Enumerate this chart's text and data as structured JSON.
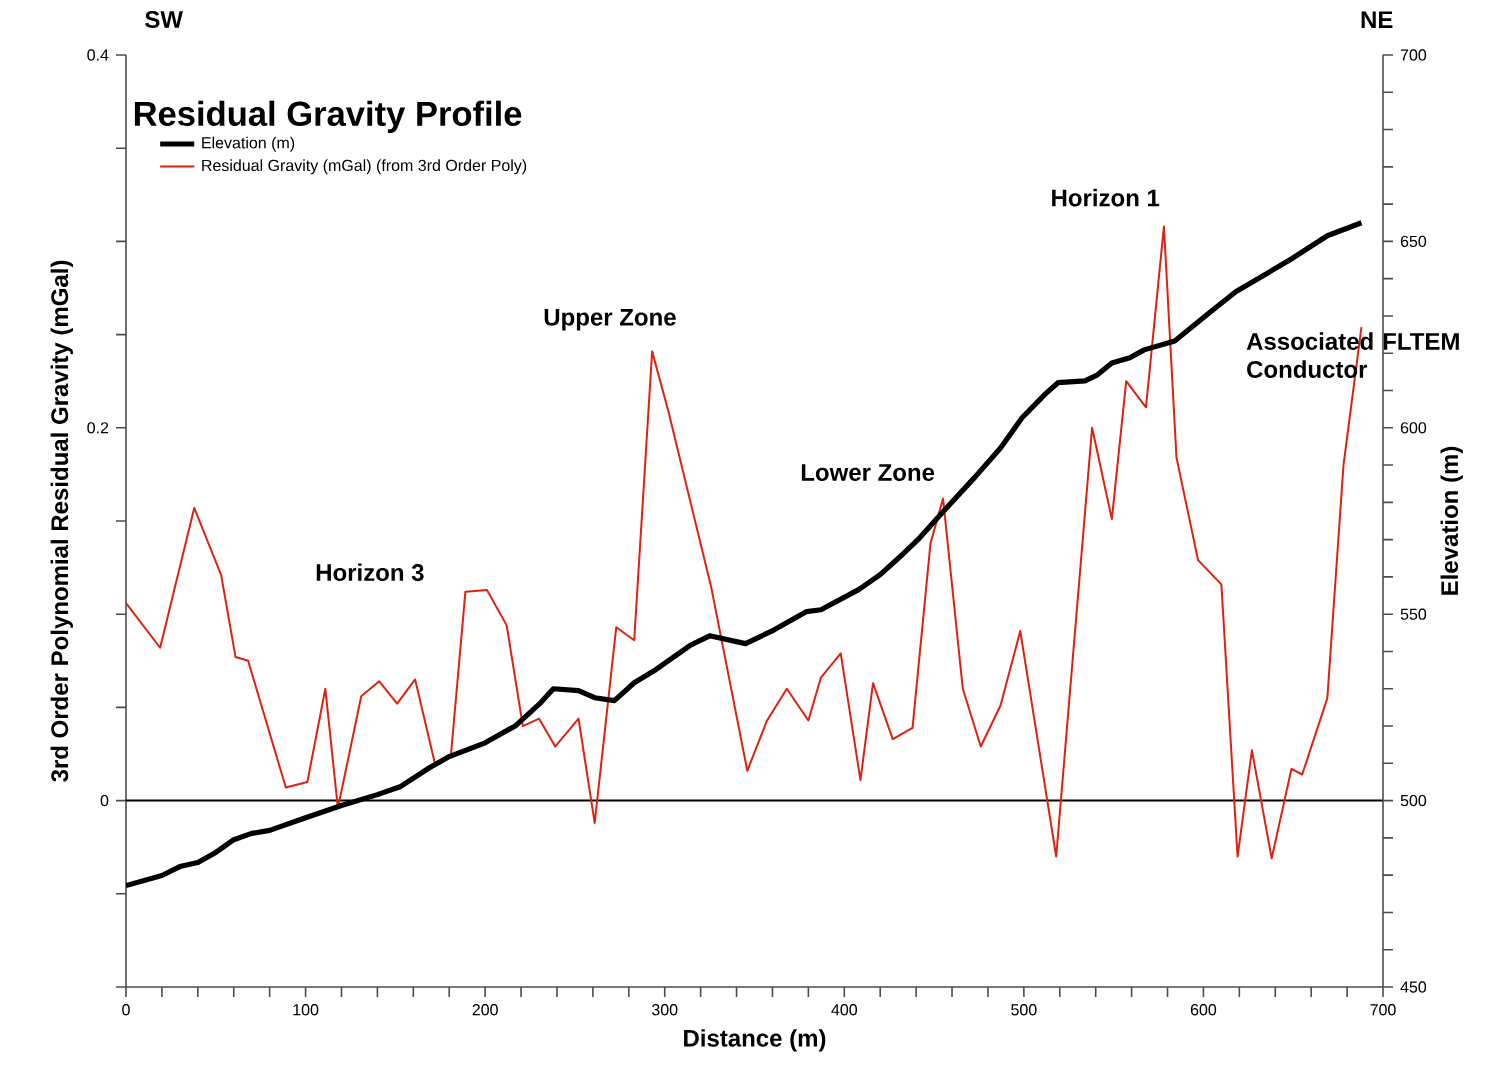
{
  "chart_data": {
    "type": "line",
    "legend_title": "Residual Gravity Profile",
    "xlabel": "Distance (m)",
    "ylabel": "3rd Order Polynomial Residual Gravity (mGal)",
    "y2label": "Elevation (m)",
    "xlim": [
      0,
      700
    ],
    "xticks": [
      0,
      {
        "value": 20,
        "label": null
      },
      {
        "value": 40,
        "label": null
      },
      {
        "value": 60,
        "label": null
      },
      {
        "value": 80,
        "label": null
      },
      100,
      {
        "value": 120,
        "label": null
      },
      {
        "value": 140,
        "label": null
      },
      {
        "value": 160,
        "label": null
      },
      {
        "value": 180,
        "label": null
      },
      200,
      {
        "value": 220,
        "label": null
      },
      {
        "value": 240,
        "label": null
      },
      {
        "value": 260,
        "label": null
      },
      {
        "value": 280,
        "label": null
      },
      300,
      {
        "value": 320,
        "label": null
      },
      {
        "value": 340,
        "label": null
      },
      {
        "value": 360,
        "label": null
      },
      {
        "value": 380,
        "label": null
      },
      400,
      {
        "value": 420,
        "label": null
      },
      {
        "value": 440,
        "label": null
      },
      {
        "value": 460,
        "label": null
      },
      {
        "value": 480,
        "label": null
      },
      500,
      {
        "value": 520,
        "label": null
      },
      {
        "value": 540,
        "label": null
      },
      {
        "value": 560,
        "label": null
      },
      {
        "value": 580,
        "label": null
      },
      600,
      {
        "value": 620,
        "label": null
      },
      {
        "value": 640,
        "label": null
      },
      {
        "value": 660,
        "label": null
      },
      {
        "value": 680,
        "label": null
      },
      700
    ],
    "ylim": [
      -0.1,
      0.4
    ],
    "yticks": [
      {
        "value": -0.1,
        "label": null
      },
      {
        "value": -0.05,
        "label": null
      },
      0,
      {
        "value": 0.05,
        "label": null
      },
      {
        "value": 0.1,
        "label": null
      },
      {
        "value": 0.15,
        "label": null
      },
      0.2,
      {
        "value": 0.25,
        "label": null
      },
      {
        "value": 0.3,
        "label": null
      },
      {
        "value": 0.35,
        "label": null
      },
      0.4
    ],
    "y2lim": [
      450,
      700
    ],
    "y2ticks": [
      450,
      {
        "value": 460,
        "label": null
      },
      {
        "value": 470,
        "label": null
      },
      {
        "value": 480,
        "label": null
      },
      {
        "value": 490,
        "label": null
      },
      500,
      {
        "value": 510,
        "label": null
      },
      {
        "value": 520,
        "label": null
      },
      {
        "value": 530,
        "label": null
      },
      {
        "value": 540,
        "label": null
      },
      550,
      {
        "value": 560,
        "label": null
      },
      {
        "value": 570,
        "label": null
      },
      {
        "value": 580,
        "label": null
      },
      {
        "value": 590,
        "label": null
      },
      600,
      {
        "value": 610,
        "label": null
      },
      {
        "value": 620,
        "label": null
      },
      {
        "value": 630,
        "label": null
      },
      {
        "value": 640,
        "label": null
      },
      650,
      {
        "value": 660,
        "label": null
      },
      {
        "value": 670,
        "label": null
      },
      {
        "value": 680,
        "label": null
      },
      {
        "value": 690,
        "label": null
      },
      700
    ],
    "legend": "top left",
    "ref_lines": [
      {
        "axis": "y",
        "value": 0,
        "color": "#000000"
      }
    ],
    "series": [
      {
        "name": "Elevation (m)",
        "color": "#000000",
        "axis": "y2",
        "x": [
          0,
          20,
          30,
          40,
          50,
          60,
          70,
          80,
          100,
          120,
          140,
          153,
          169,
          180,
          200,
          217,
          231,
          238,
          252,
          261,
          272,
          283,
          295,
          314,
          325,
          345,
          361,
          379,
          387,
          408,
          420,
          431,
          441,
          456,
          473,
          487,
          499,
          512,
          519,
          534,
          541,
          549,
          559,
          567,
          584,
          604,
          618,
          648,
          669,
          688
        ],
        "values": [
          477.2,
          479.9,
          482.3,
          483.4,
          486.1,
          489.5,
          491.2,
          492.0,
          495.4,
          498.7,
          501.6,
          503.8,
          508.8,
          511.8,
          515.5,
          520.1,
          526.3,
          530.0,
          529.5,
          527.6,
          526.8,
          531.6,
          535.1,
          541.6,
          544.2,
          542.1,
          545.8,
          550.7,
          551.2,
          556.6,
          560.6,
          565.4,
          570.0,
          578.0,
          586.9,
          594.6,
          602.7,
          609.1,
          612.1,
          612.6,
          614.2,
          617.4,
          618.8,
          620.9,
          623.3,
          631.1,
          636.5,
          645.0,
          651.5,
          655.0
        ]
      },
      {
        "name": "Residual Gravity (mGal) (from 3rd Order Poly)",
        "color": "#dd2211",
        "x": [
          0,
          19,
          38,
          53,
          61,
          68,
          89,
          101,
          111,
          118,
          131,
          141,
          151,
          161,
          172,
          181,
          189,
          201,
          212,
          221,
          230,
          239,
          252,
          261,
          273,
          283,
          293,
          302,
          326,
          346,
          357,
          368,
          380,
          387,
          398,
          409,
          416,
          427,
          438,
          448,
          455,
          466,
          476,
          487,
          498,
          518,
          538,
          549,
          557,
          568,
          578,
          585,
          597,
          610,
          619,
          627,
          638,
          649,
          655,
          669,
          678,
          688
        ],
        "values": [
          0.106,
          0.082,
          0.157,
          0.121,
          0.077,
          0.075,
          0.007,
          0.01,
          0.06,
          -0.004,
          0.056,
          0.064,
          0.052,
          0.065,
          0.02,
          0.025,
          0.112,
          0.113,
          0.094,
          0.04,
          0.044,
          0.029,
          0.044,
          -0.012,
          0.093,
          0.086,
          0.241,
          0.209,
          0.114,
          0.016,
          0.043,
          0.06,
          0.043,
          0.066,
          0.079,
          0.011,
          0.063,
          0.033,
          0.039,
          0.138,
          0.162,
          0.06,
          0.029,
          0.051,
          0.091,
          -0.03,
          0.2,
          0.151,
          0.225,
          0.211,
          0.308,
          0.184,
          0.129,
          0.116,
          -0.03,
          0.027,
          -0.031,
          0.017,
          0.014,
          0.055,
          0.18,
          0.254
        ]
      }
    ],
    "annotations": [
      "SW",
      "NE",
      "Horizon 3",
      "Upper Zone",
      "Lower Zone",
      "Horizon 1",
      "Associated FLTEM Conductor"
    ]
  }
}
